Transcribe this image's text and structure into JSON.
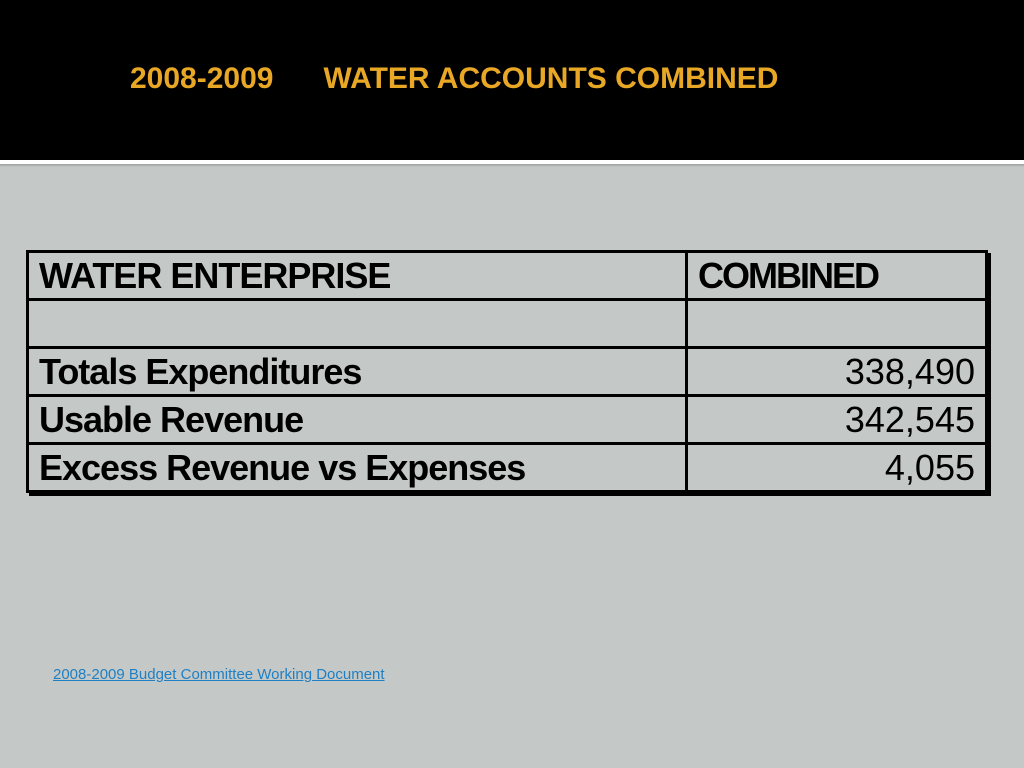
{
  "slide": {
    "title": "2008-2009      WATER ACCOUNTS COMBINED",
    "colors": {
      "title_bar": "#000000",
      "title_text": "#e8a825",
      "background": "#c4c9c7",
      "link": "#1f7fc4"
    }
  },
  "table": {
    "headers": {
      "label": "WATER ENTERPRISE",
      "value": "COMBINED"
    },
    "rows": [
      {
        "label": "",
        "value": ""
      },
      {
        "label": "Totals Expenditures",
        "value": "338,490"
      },
      {
        "label": "Usable Revenue",
        "value": "342,545"
      },
      {
        "label": "Excess Revenue vs Expenses",
        "value": "4,055"
      }
    ]
  },
  "footer": {
    "link_text": "2008-2009 Budget Committee Working Document"
  }
}
